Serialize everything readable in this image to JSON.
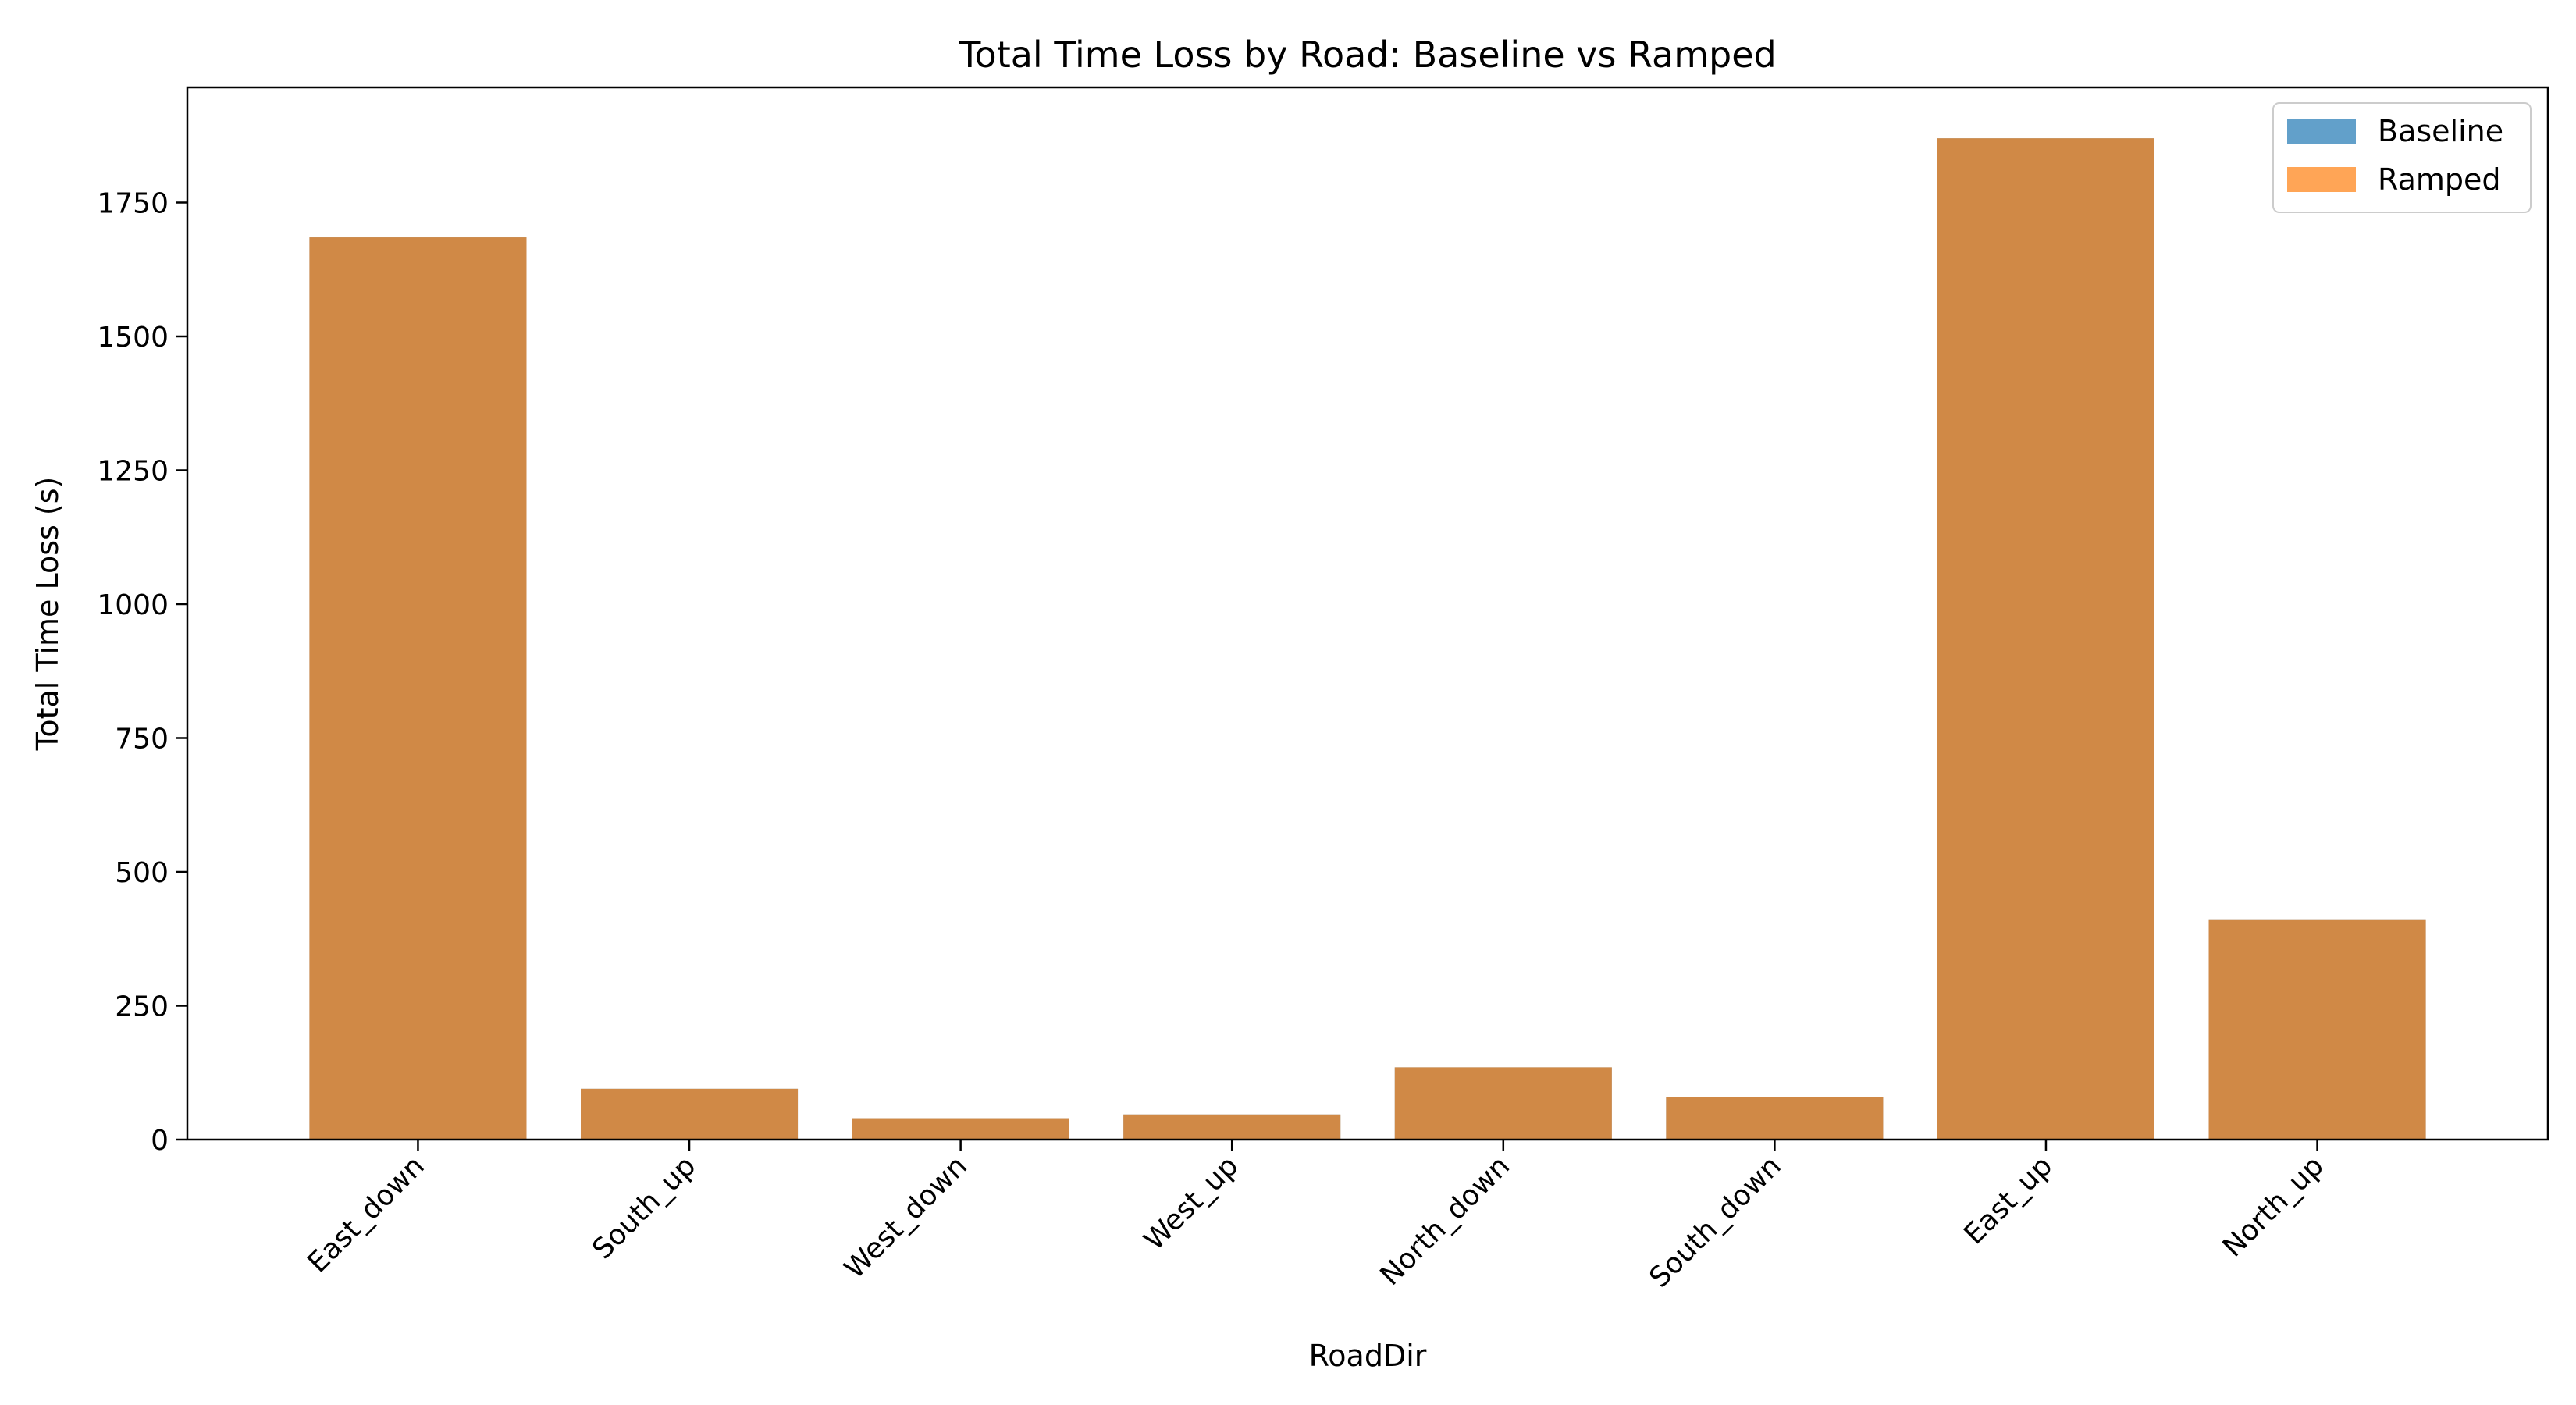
{
  "chart_data": {
    "type": "bar",
    "title": "Total Time Loss by Road: Baseline vs Ramped",
    "xlabel": "RoadDir",
    "ylabel": "Total Time Loss (s)",
    "categories": [
      "East_down",
      "South_up",
      "West_down",
      "West_up",
      "North_down",
      "South_down",
      "East_up",
      "North_up"
    ],
    "ylim": [
      0,
      1965
    ],
    "yticks": [
      0,
      250,
      500,
      750,
      1000,
      1250,
      1500,
      1750
    ],
    "series": [
      {
        "name": "Baseline",
        "color": "#1f77b4",
        "opacity": 0.7,
        "values": [
          1685,
          95,
          40,
          47,
          135,
          80,
          1870,
          410
        ]
      },
      {
        "name": "Ramped",
        "color": "#ff7f0e",
        "opacity": 0.7,
        "values": [
          1685,
          95,
          40,
          47,
          135,
          80,
          1870,
          410
        ]
      }
    ],
    "legend_position": "top-right",
    "grid": false,
    "x_tick_rotation": 45
  }
}
